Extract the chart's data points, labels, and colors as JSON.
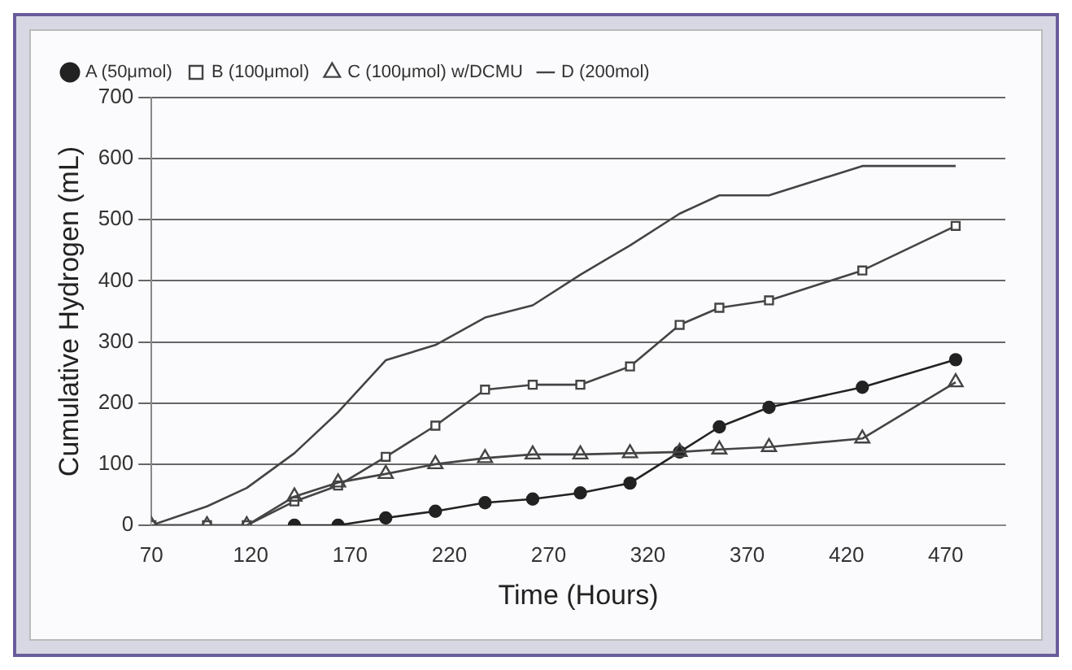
{
  "chart_data": {
    "type": "line",
    "xlabel": "Time (Hours)",
    "ylabel": "Cumulative Hydrogen (mL)",
    "x": [
      70,
      98,
      118,
      142,
      164,
      188,
      213,
      238,
      262,
      286,
      311,
      336,
      356,
      381,
      428,
      475
    ],
    "series": [
      {
        "name": "A (50μmol)",
        "color": "#222222",
        "marker": "circle",
        "x": [
          142,
          164,
          188,
          213,
          238,
          262,
          286,
          311,
          336,
          356,
          381,
          428,
          475
        ],
        "values": [
          0,
          0,
          12,
          23,
          37,
          43,
          53,
          69,
          120,
          161,
          193,
          226,
          271
        ]
      },
      {
        "name": "B (100μmol)",
        "color": "#444444",
        "marker": "square",
        "values": [
          0,
          0,
          0,
          39,
          65,
          112,
          163,
          222,
          230,
          230,
          260,
          328,
          356,
          368,
          417,
          490
        ]
      },
      {
        "name": "C (100μmol) w/DCMU",
        "color": "#444444",
        "marker": "triangle",
        "values": [
          0,
          0,
          0,
          47,
          70,
          84,
          100,
          110,
          116,
          116,
          118,
          120,
          124,
          128,
          142,
          234
        ]
      },
      {
        "name": "D (200mol)",
        "color": "#444444",
        "marker": "none",
        "values": [
          0,
          31,
          61,
          118,
          185,
          270,
          295,
          340,
          360,
          410,
          458,
          510,
          540,
          540,
          588,
          588
        ]
      }
    ],
    "xlim": [
      70,
      500
    ],
    "xticks": [
      70,
      120,
      170,
      220,
      270,
      320,
      370,
      420,
      470
    ],
    "ylim": [
      0,
      700
    ],
    "yticks": [
      0,
      100,
      200,
      300,
      400,
      500,
      600,
      700
    ],
    "grid": "y",
    "legend": "top left"
  }
}
